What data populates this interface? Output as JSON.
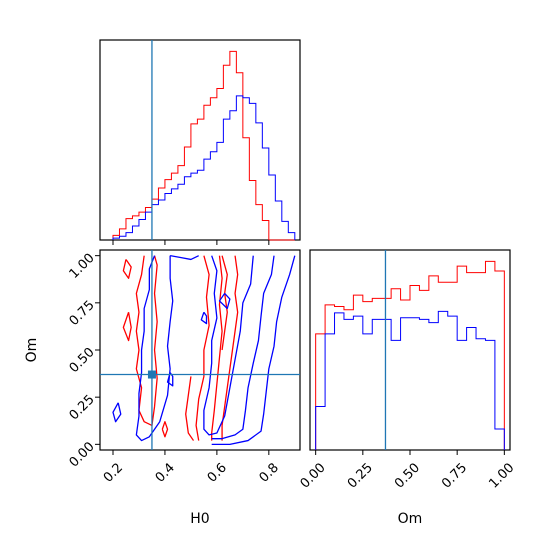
{
  "chart_data": [
    {
      "type": "line",
      "panel": "H0 marginal histogram",
      "xlim": [
        0.15,
        0.92
      ],
      "x_truth": 0.35,
      "bin_edges": [
        0.2,
        0.225,
        0.25,
        0.275,
        0.3,
        0.325,
        0.35,
        0.375,
        0.4,
        0.425,
        0.45,
        0.475,
        0.5,
        0.525,
        0.55,
        0.575,
        0.6,
        0.625,
        0.65,
        0.675,
        0.7,
        0.725,
        0.75,
        0.775,
        0.8,
        0.825,
        0.85,
        0.875,
        0.9
      ],
      "series": [
        {
          "color": "#ff0000",
          "values": [
            0.5,
            1.2,
            2.3,
            2.6,
            3.0,
            3.5,
            4.4,
            5.6,
            6.5,
            7.2,
            8.0,
            10.0,
            12.5,
            13.0,
            14.5,
            15.3,
            16.3,
            18.8,
            20.3,
            18.0,
            11.0,
            6.4,
            3.8,
            2.1,
            0.0,
            0.0,
            0.0,
            0.0
          ]
        },
        {
          "color": "#0000ff",
          "values": [
            0.2,
            0.4,
            0.8,
            1.5,
            2.2,
            3.0,
            3.8,
            4.3,
            5.0,
            5.5,
            6.0,
            6.8,
            7.2,
            7.5,
            8.7,
            9.5,
            10.5,
            13.0,
            13.9,
            15.5,
            15.3,
            14.7,
            12.6,
            9.9,
            7.0,
            4.2,
            2.0,
            0.8
          ]
        }
      ]
    },
    {
      "type": "line",
      "panel": "Om marginal histogram",
      "xlim": [
        -0.03,
        1.03
      ],
      "x_truth": 0.37,
      "bin_edges": [
        0.0,
        0.05,
        0.1,
        0.15,
        0.2,
        0.25,
        0.3,
        0.35,
        0.4,
        0.45,
        0.5,
        0.55,
        0.6,
        0.65,
        0.7,
        0.75,
        0.8,
        0.85,
        0.9,
        0.95,
        1.0
      ],
      "series": [
        {
          "color": "#ff0000",
          "values": [
            7.2,
            9.0,
            8.9,
            8.7,
            9.6,
            9.2,
            9.4,
            9.4,
            10.0,
            9.3,
            10.2,
            9.9,
            10.8,
            10.4,
            10.4,
            11.4,
            11.0,
            11.0,
            11.7,
            11.1
          ]
        },
        {
          "color": "#0000ff",
          "values": [
            2.7,
            7.2,
            8.5,
            8.1,
            8.3,
            7.2,
            8.1,
            8.1,
            6.8,
            8.2,
            8.2,
            8.1,
            7.9,
            8.6,
            8.3,
            6.8,
            7.6,
            6.9,
            6.8,
            1.3
          ]
        }
      ]
    },
    {
      "type": "line",
      "panel": "H0 vs Om joint contours",
      "xlabel": "H0",
      "ylabel": "Om",
      "xlim": [
        0.15,
        0.92
      ],
      "ylim": [
        -0.03,
        1.03
      ],
      "x_ticks": [
        {
          "value": 0.2,
          "label": "0.2"
        },
        {
          "value": 0.4,
          "label": "0.4"
        },
        {
          "value": 0.6,
          "label": "0.6"
        },
        {
          "value": 0.8,
          "label": "0.8"
        }
      ],
      "y_ticks": [
        {
          "value": 0.0,
          "label": "0.00"
        },
        {
          "value": 0.25,
          "label": "0.25"
        },
        {
          "value": 0.5,
          "label": "0.50"
        },
        {
          "value": 0.75,
          "label": "0.75"
        },
        {
          "value": 1.0,
          "label": "1.00"
        }
      ],
      "truth": {
        "x": 0.35,
        "y": 0.37,
        "color": "#1f77b4"
      },
      "series": [
        {
          "color": "#ff0000",
          "points": [
            [
              0.55,
              1.0
            ],
            [
              0.57,
              0.9
            ],
            [
              0.56,
              0.78
            ],
            [
              0.57,
              0.63
            ],
            [
              0.55,
              0.5
            ],
            [
              0.55,
              0.36
            ],
            [
              0.53,
              0.24
            ],
            [
              0.52,
              0.1
            ],
            [
              0.53,
              0.02
            ]
          ]
        },
        {
          "color": "#ff0000",
          "points": [
            [
              0.61,
              1.0
            ],
            [
              0.62,
              0.88
            ],
            [
              0.61,
              0.74
            ],
            [
              0.62,
              0.6
            ],
            [
              0.61,
              0.46
            ],
            [
              0.6,
              0.32
            ],
            [
              0.59,
              0.18
            ],
            [
              0.58,
              0.06
            ],
            [
              0.58,
              0.02
            ]
          ]
        },
        {
          "color": "#ff0000",
          "points": [
            [
              0.67,
              1.0
            ],
            [
              0.68,
              0.9
            ],
            [
              0.67,
              0.8
            ],
            [
              0.68,
              0.7
            ],
            [
              0.67,
              0.6
            ],
            [
              0.66,
              0.5
            ],
            [
              0.65,
              0.4
            ],
            [
              0.64,
              0.3
            ],
            [
              0.63,
              0.2
            ],
            [
              0.62,
              0.1
            ],
            [
              0.62,
              0.02
            ]
          ]
        },
        {
          "color": "#ff0000",
          "points": [
            [
              0.62,
              1.0
            ],
            [
              0.64,
              0.9
            ],
            [
              0.63,
              0.8
            ],
            [
              0.64,
              0.7
            ],
            [
              0.63,
              0.6
            ],
            [
              0.62,
              0.5
            ]
          ]
        },
        {
          "color": "#ff0000",
          "points": [
            [
              0.32,
              1.0
            ],
            [
              0.31,
              0.9
            ],
            [
              0.29,
              0.8
            ],
            [
              0.3,
              0.7
            ],
            [
              0.29,
              0.6
            ],
            [
              0.3,
              0.5
            ],
            [
              0.29,
              0.4
            ],
            [
              0.31,
              0.3
            ],
            [
              0.3,
              0.18
            ],
            [
              0.32,
              0.12
            ],
            [
              0.35,
              0.1
            ],
            [
              0.36,
              0.2
            ],
            [
              0.37,
              0.35
            ],
            [
              0.36,
              0.5
            ],
            [
              0.37,
              0.65
            ],
            [
              0.36,
              0.8
            ],
            [
              0.37,
              0.95
            ],
            [
              0.36,
              1.0
            ]
          ]
        },
        {
          "color": "#ff0000",
          "points": [
            [
              0.26,
              0.7
            ],
            [
              0.24,
              0.62
            ],
            [
              0.26,
              0.55
            ],
            [
              0.27,
              0.62
            ],
            [
              0.26,
              0.7
            ]
          ]
        },
        {
          "color": "#ff0000",
          "points": [
            [
              0.25,
              0.98
            ],
            [
              0.24,
              0.92
            ],
            [
              0.26,
              0.88
            ],
            [
              0.27,
              0.94
            ],
            [
              0.25,
              0.98
            ]
          ]
        },
        {
          "color": "#ff0000",
          "points": [
            [
              0.5,
              0.36
            ],
            [
              0.49,
              0.26
            ],
            [
              0.48,
              0.16
            ],
            [
              0.49,
              0.06
            ],
            [
              0.51,
              0.02
            ]
          ]
        },
        {
          "color": "#ff0000",
          "points": [
            [
              0.39,
              0.08
            ],
            [
              0.4,
              0.12
            ],
            [
              0.41,
              0.08
            ],
            [
              0.4,
              0.04
            ],
            [
              0.39,
              0.08
            ]
          ]
        },
        {
          "color": "#0000ff",
          "points": [
            [
              0.58,
              1.0
            ],
            [
              0.6,
              0.92
            ],
            [
              0.59,
              0.8
            ],
            [
              0.6,
              0.67
            ],
            [
              0.58,
              0.55
            ],
            [
              0.58,
              0.43
            ],
            [
              0.57,
              0.3
            ],
            [
              0.55,
              0.18
            ],
            [
              0.55,
              0.08
            ],
            [
              0.57,
              0.05
            ],
            [
              0.6,
              0.06
            ],
            [
              0.63,
              0.15
            ],
            [
              0.65,
              0.3
            ],
            [
              0.67,
              0.45
            ],
            [
              0.69,
              0.6
            ],
            [
              0.7,
              0.75
            ],
            [
              0.73,
              0.85
            ],
            [
              0.74,
              1.0
            ]
          ]
        },
        {
          "color": "#0000ff",
          "points": [
            [
              0.82,
              1.0
            ],
            [
              0.81,
              0.9
            ],
            [
              0.78,
              0.8
            ],
            [
              0.77,
              0.68
            ],
            [
              0.76,
              0.55
            ],
            [
              0.74,
              0.43
            ],
            [
              0.72,
              0.3
            ],
            [
              0.71,
              0.18
            ],
            [
              0.7,
              0.08
            ],
            [
              0.67,
              0.05
            ],
            [
              0.62,
              0.03
            ],
            [
              0.58,
              0.03
            ]
          ]
        },
        {
          "color": "#0000ff",
          "points": [
            [
              0.9,
              1.0
            ],
            [
              0.88,
              0.9
            ],
            [
              0.85,
              0.78
            ],
            [
              0.83,
              0.65
            ],
            [
              0.82,
              0.52
            ],
            [
              0.8,
              0.4
            ],
            [
              0.79,
              0.28
            ],
            [
              0.78,
              0.16
            ],
            [
              0.77,
              0.07
            ],
            [
              0.72,
              0.02
            ],
            [
              0.65,
              0.0
            ],
            [
              0.58,
              0.0
            ]
          ]
        },
        {
          "color": "#0000ff",
          "points": [
            [
              0.36,
              1.0
            ],
            [
              0.34,
              0.93
            ],
            [
              0.34,
              0.82
            ],
            [
              0.32,
              0.72
            ],
            [
              0.32,
              0.6
            ],
            [
              0.31,
              0.5
            ],
            [
              0.31,
              0.38
            ],
            [
              0.3,
              0.27
            ],
            [
              0.3,
              0.15
            ],
            [
              0.29,
              0.05
            ],
            [
              0.31,
              0.02
            ],
            [
              0.34,
              0.04
            ],
            [
              0.38,
              0.12
            ],
            [
              0.41,
              0.26
            ],
            [
              0.42,
              0.4
            ],
            [
              0.41,
              0.52
            ],
            [
              0.42,
              0.65
            ],
            [
              0.43,
              0.76
            ],
            [
              0.42,
              0.88
            ],
            [
              0.42,
              1.0
            ]
          ]
        },
        {
          "color": "#0000ff",
          "points": [
            [
              0.42,
              1.0
            ],
            [
              0.46,
              0.99
            ],
            [
              0.5,
              0.98
            ],
            [
              0.53,
              1.0
            ]
          ]
        },
        {
          "color": "#0000ff",
          "points": [
            [
              0.22,
              0.22
            ],
            [
              0.2,
              0.17
            ],
            [
              0.21,
              0.12
            ],
            [
              0.23,
              0.16
            ],
            [
              0.22,
              0.22
            ]
          ]
        },
        {
          "color": "#0000ff",
          "points": [
            [
              0.42,
              0.38
            ],
            [
              0.41,
              0.33
            ],
            [
              0.43,
              0.31
            ],
            [
              0.43,
              0.36
            ],
            [
              0.42,
              0.38
            ]
          ]
        },
        {
          "color": "#0000ff",
          "points": [
            [
              0.63,
              0.8
            ],
            [
              0.61,
              0.76
            ],
            [
              0.64,
              0.72
            ],
            [
              0.65,
              0.77
            ],
            [
              0.63,
              0.8
            ]
          ]
        },
        {
          "color": "#0000ff",
          "points": [
            [
              0.55,
              0.7
            ],
            [
              0.54,
              0.66
            ],
            [
              0.56,
              0.64
            ],
            [
              0.56,
              0.68
            ],
            [
              0.55,
              0.7
            ]
          ]
        }
      ]
    }
  ],
  "om_panel": {
    "xlabel": "Om",
    "x_ticks": [
      {
        "value": 0.0,
        "label": "0.00"
      },
      {
        "value": 0.25,
        "label": "0.25"
      },
      {
        "value": 0.5,
        "label": "0.50"
      },
      {
        "value": 0.75,
        "label": "0.75"
      },
      {
        "value": 1.0,
        "label": "1.00"
      }
    ]
  }
}
